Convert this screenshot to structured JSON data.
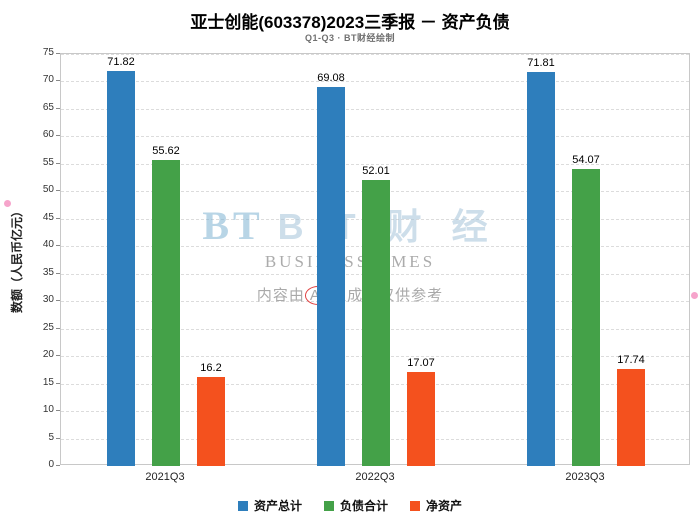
{
  "title": "亚士创能(603378)2023三季报 － 资产负债",
  "subtitle": "Q1-Q3 · BT财经绘制",
  "ylabel": "数额（人民币亿元）",
  "watermark": {
    "mark": "BT",
    "name_spaced": "B T 财 经",
    "sub": "BUSINESSTIMES",
    "disclaimer_prefix": "内容由",
    "disclaimer_ai": "AI",
    "disclaimer_suffix": "生成，仅供参考"
  },
  "chart_data": {
    "type": "bar",
    "categories": [
      "2021Q3",
      "2022Q3",
      "2023Q3"
    ],
    "series": [
      {
        "name": "资产总计",
        "color": "#2e7ebc",
        "values": [
          71.82,
          69.08,
          71.81
        ]
      },
      {
        "name": "负债合计",
        "color": "#44a148",
        "values": [
          55.62,
          52.01,
          54.07
        ]
      },
      {
        "name": "净资产",
        "color": "#f4511e",
        "values": [
          16.2,
          17.07,
          17.74
        ]
      }
    ],
    "title": "亚士创能(603378)2023三季报 － 资产负债",
    "xlabel": "",
    "ylabel": "数额（人民币亿元）",
    "ylim": [
      0,
      75
    ],
    "ytick_step": 5,
    "grid": true,
    "legend_position": "bottom"
  }
}
